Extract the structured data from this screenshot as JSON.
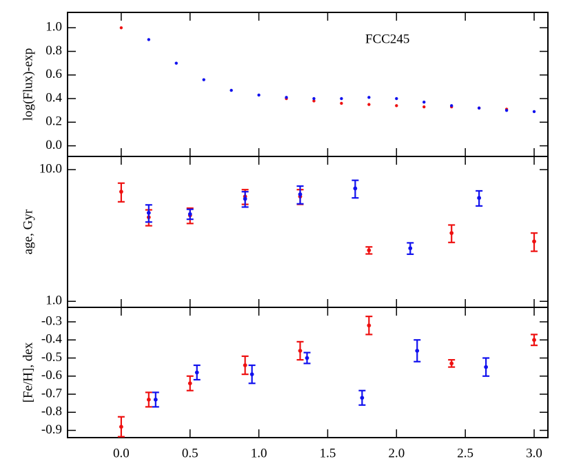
{
  "chart_data": [
    {
      "type": "scatter",
      "ylabel": "log(Flux)-exp",
      "annotation": "FCC245",
      "xlim": [
        -0.39,
        3.1
      ],
      "xticks": [
        {
          "value": 0,
          "label": "0.0"
        },
        0.5,
        {
          "value": 1,
          "label": "1.0"
        },
        1.5,
        {
          "value": 2,
          "label": "2.0"
        },
        2.5,
        {
          "value": 3,
          "label": "3.0"
        }
      ],
      "ylim": [
        -0.09,
        1.13
      ],
      "yticks": [
        {
          "value": 0,
          "label": "0.0"
        },
        0.2,
        0.4,
        0.6,
        0.8,
        {
          "value": 1,
          "label": "1.0"
        }
      ],
      "series": [
        {
          "color": "#ee1111",
          "x": [
            0.0,
            1.2,
            1.4,
            1.6,
            1.8,
            2.0,
            2.2,
            2.4,
            2.6,
            2.8
          ],
          "values": [
            1.0,
            0.4,
            0.38,
            0.36,
            0.35,
            0.34,
            0.33,
            0.33,
            0.32,
            0.31
          ]
        },
        {
          "color": "#1111ee",
          "x": [
            0.2,
            0.4,
            0.6,
            0.8,
            1.0,
            1.2,
            1.4,
            1.6,
            1.8,
            2.0,
            2.2,
            2.4,
            2.6,
            2.8,
            3.0
          ],
          "values": [
            0.9,
            0.7,
            0.56,
            0.47,
            0.43,
            0.41,
            0.4,
            0.4,
            0.41,
            0.4,
            0.37,
            0.34,
            0.32,
            0.3,
            0.29
          ]
        }
      ]
    },
    {
      "type": "errorbar",
      "ylabel": "age, Gyr",
      "ylog": true,
      "xlim": [
        -0.39,
        3.1
      ],
      "xticks": [
        0,
        0.5,
        1,
        1.5,
        2,
        2.5,
        3
      ],
      "ylim": [
        0.9,
        12.6
      ],
      "yticks": [
        {
          "value": 1,
          "label": "1.0"
        },
        {
          "value": 10,
          "label": "10.0"
        }
      ],
      "series": [
        {
          "color": "#ee1111",
          "x": [
            0.0,
            0.2,
            0.5,
            0.9,
            1.3,
            1.8,
            2.4,
            3.0
          ],
          "values": [
            6.8,
            4.35,
            4.5,
            6.25,
            6.25,
            2.44,
            3.3,
            2.85
          ],
          "errors": [
            1.1,
            0.6,
            0.6,
            0.8,
            0.8,
            0.15,
            0.5,
            0.45
          ]
        },
        {
          "color": "#1111ee",
          "x": [
            0.2,
            0.5,
            0.9,
            1.3,
            1.7,
            2.1,
            2.6
          ],
          "values": [
            4.7,
            4.6,
            6.0,
            6.5,
            7.2,
            2.53,
            6.1
          ],
          "errors": [
            0.7,
            0.4,
            0.8,
            1.0,
            1.1,
            0.25,
            0.8
          ]
        }
      ]
    },
    {
      "type": "errorbar",
      "ylabel": "[Fe/H], dex",
      "xlim": [
        -0.39,
        3.1
      ],
      "xticks": [
        {
          "value": 0,
          "label": "0.0"
        },
        0.5,
        {
          "value": 1,
          "label": "1.0"
        },
        1.5,
        {
          "value": 2,
          "label": "2.0"
        },
        2.5,
        {
          "value": 3,
          "label": "3.0"
        }
      ],
      "ylim": [
        -0.94,
        -0.22
      ],
      "yticks": [
        -0.9,
        -0.8,
        -0.7,
        -0.6,
        -0.5,
        -0.4,
        -0.3
      ],
      "series": [
        {
          "color": "#ee1111",
          "x": [
            0.0,
            0.2,
            0.5,
            0.9,
            1.3,
            1.8,
            2.4,
            3.0
          ],
          "values": [
            -0.88,
            -0.73,
            -0.64,
            -0.54,
            -0.46,
            -0.32,
            -0.53,
            -0.4
          ],
          "errors": [
            0.055,
            0.04,
            0.04,
            0.05,
            0.05,
            0.05,
            0.02,
            0.03
          ]
        },
        {
          "color": "#1111ee",
          "x": [
            0.25,
            0.55,
            0.95,
            1.35,
            1.75,
            2.15,
            2.65
          ],
          "values": [
            -0.73,
            -0.58,
            -0.59,
            -0.5,
            -0.72,
            -0.46,
            -0.55
          ],
          "errors": [
            0.04,
            0.04,
            0.05,
            0.03,
            0.04,
            0.06,
            0.05
          ]
        }
      ]
    }
  ]
}
